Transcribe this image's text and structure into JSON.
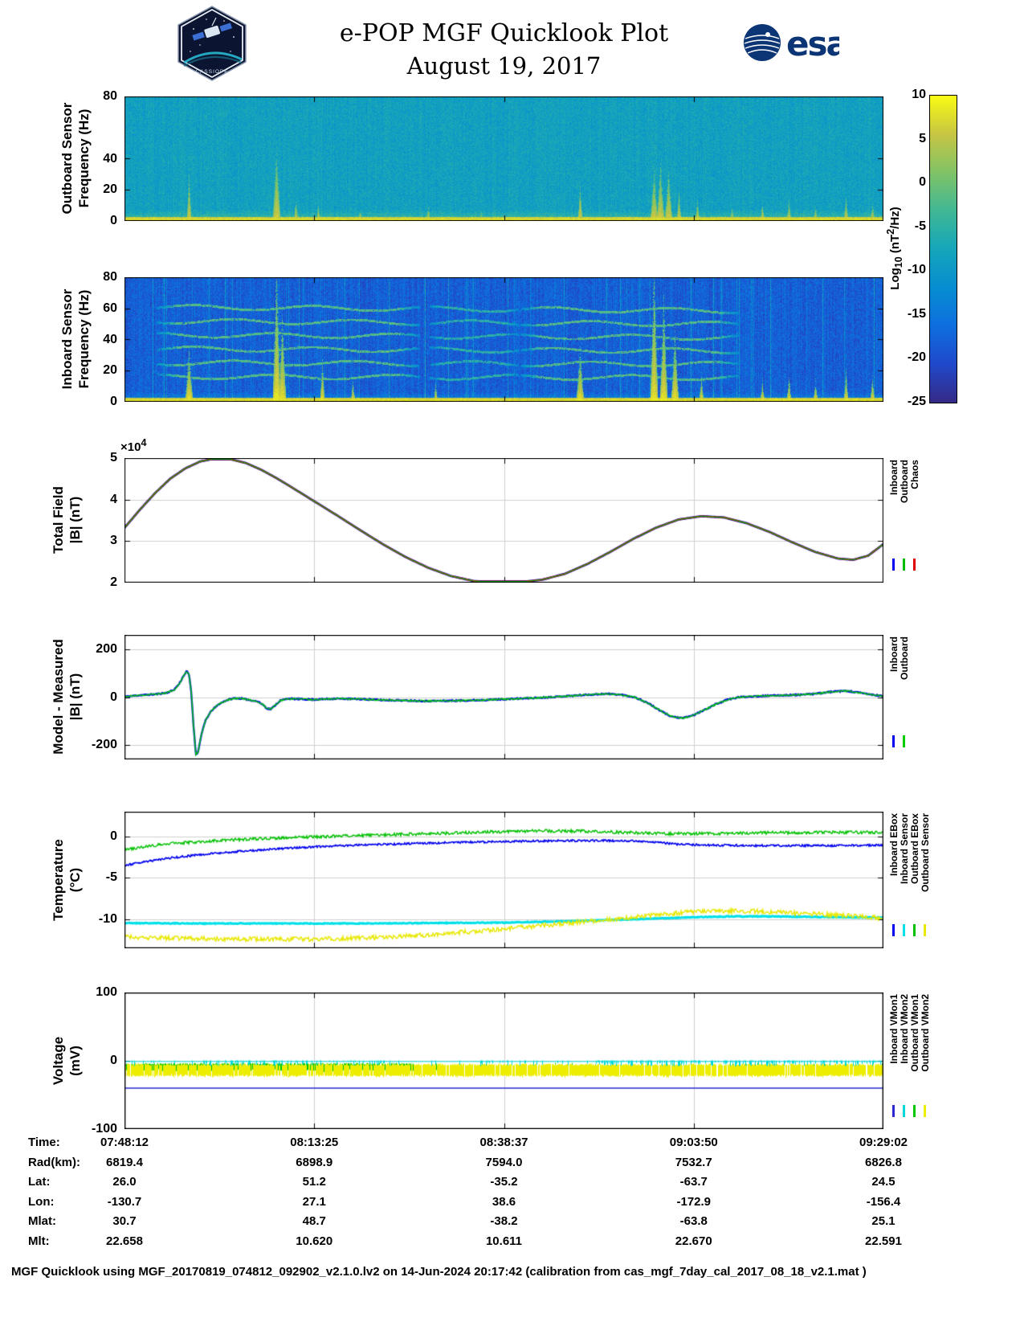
{
  "header": {
    "title_line1": "e-POP MGF Quicklook Plot",
    "title_line2": "August 19, 2017",
    "cassiope_logo_text": "CASSIOPE",
    "esa_logo_text": "esa"
  },
  "colorbar": {
    "label_pre": "Log",
    "label_sub": "10",
    "label_mid": " (nT",
    "label_sup": "2",
    "label_post": "/Hz)",
    "ticks": [
      10,
      5,
      0,
      -5,
      -10,
      -15,
      -20,
      -25
    ],
    "range": [
      -25,
      10
    ]
  },
  "chart_data": [
    {
      "id": "outboard_spectrogram",
      "type": "heatmap",
      "ylabel_line1": "Outboard Sensor",
      "ylabel_line2": "Frequency (Hz)",
      "ylim": [
        0,
        80
      ],
      "yticks": [
        0,
        20,
        40,
        80
      ],
      "x_time_range": [
        "07:48:12",
        "09:29:02"
      ],
      "value_range": [
        -25,
        10
      ],
      "background_level": -8.5,
      "bg_noise": 2.6,
      "col_mod": 0.8,
      "streak_prob": 0,
      "low_f": 7,
      "low_boost": 7,
      "burst_peak": 5,
      "bursts": [
        {
          "t": 0.085,
          "fmax": 28
        },
        {
          "t": 0.2,
          "fmax": 42
        },
        {
          "t": 0.225,
          "fmax": 12
        },
        {
          "t": 0.255,
          "fmax": 10
        },
        {
          "t": 0.31,
          "fmax": 6
        },
        {
          "t": 0.4,
          "fmax": 8
        },
        {
          "t": 0.47,
          "fmax": 5
        },
        {
          "t": 0.6,
          "fmax": 22
        },
        {
          "t": 0.697,
          "fmax": 30
        },
        {
          "t": 0.706,
          "fmax": 35
        },
        {
          "t": 0.716,
          "fmax": 30
        },
        {
          "t": 0.73,
          "fmax": 18
        },
        {
          "t": 0.755,
          "fmax": 12
        },
        {
          "t": 0.8,
          "fmax": 7
        },
        {
          "t": 0.84,
          "fmax": 10
        },
        {
          "t": 0.875,
          "fmax": 12
        },
        {
          "t": 0.91,
          "fmax": 8
        },
        {
          "t": 0.95,
          "fmax": 14
        },
        {
          "t": 0.985,
          "fmax": 10
        }
      ]
    },
    {
      "id": "inboard_spectrogram",
      "type": "heatmap",
      "ylabel_line1": "Inboard Sensor",
      "ylabel_line2": "Frequency (Hz)",
      "ylim": [
        0,
        80
      ],
      "yticks": [
        0,
        20,
        40,
        60,
        80
      ],
      "x_time_range": [
        "07:48:12",
        "09:29:02"
      ],
      "value_range": [
        -25,
        10
      ],
      "background_level": -18,
      "bg_noise": 3.2,
      "col_mod": 1.6,
      "streak_prob": 0.045,
      "low_f": 6,
      "low_boost": 8,
      "burst_peak": 7,
      "harmonics": [
        16,
        25,
        34,
        43,
        52,
        61
      ],
      "bursts": [
        {
          "t": 0.085,
          "fmax": 30
        },
        {
          "t": 0.2,
          "fmax": 78
        },
        {
          "t": 0.207,
          "fmax": 50
        },
        {
          "t": 0.26,
          "fmax": 24
        },
        {
          "t": 0.3,
          "fmax": 12
        },
        {
          "t": 0.41,
          "fmax": 10
        },
        {
          "t": 0.6,
          "fmax": 30
        },
        {
          "t": 0.697,
          "fmax": 78
        },
        {
          "t": 0.71,
          "fmax": 58
        },
        {
          "t": 0.725,
          "fmax": 40
        },
        {
          "t": 0.76,
          "fmax": 15
        },
        {
          "t": 0.84,
          "fmax": 12
        },
        {
          "t": 0.875,
          "fmax": 15
        },
        {
          "t": 0.91,
          "fmax": 12
        },
        {
          "t": 0.95,
          "fmax": 18
        },
        {
          "t": 0.985,
          "fmax": 14
        }
      ]
    },
    {
      "id": "total_field",
      "type": "line",
      "ylabel_line1": "Total Field",
      "ylabel_line2": "|B| (nT)",
      "y_multiplier_base": "×10",
      "y_multiplier_exp": "4",
      "ylim": [
        2,
        5
      ],
      "yticks": [
        2,
        3,
        4,
        5
      ],
      "x_time_range": [
        "07:48:12",
        "09:29:02"
      ],
      "x": [
        0,
        0.02,
        0.04,
        0.06,
        0.08,
        0.1,
        0.12,
        0.14,
        0.16,
        0.18,
        0.2,
        0.22,
        0.25,
        0.28,
        0.31,
        0.34,
        0.37,
        0.4,
        0.43,
        0.46,
        0.49,
        0.52,
        0.55,
        0.58,
        0.61,
        0.64,
        0.67,
        0.7,
        0.73,
        0.76,
        0.79,
        0.82,
        0.85,
        0.88,
        0.91,
        0.94,
        0.96,
        0.98,
        1.0
      ],
      "y": [
        3.32,
        3.75,
        4.15,
        4.5,
        4.75,
        4.92,
        4.99,
        4.97,
        4.88,
        4.72,
        4.52,
        4.3,
        3.96,
        3.62,
        3.27,
        2.93,
        2.62,
        2.36,
        2.16,
        2.04,
        2.0,
        2.01,
        2.07,
        2.21,
        2.45,
        2.74,
        3.05,
        3.32,
        3.52,
        3.6,
        3.57,
        3.43,
        3.22,
        2.97,
        2.74,
        2.58,
        2.55,
        2.65,
        2.93
      ],
      "series": [
        {
          "name": "Inboard",
          "color": "#0000ee",
          "width": 2.8
        },
        {
          "name": "Chaos",
          "color": "#e00000",
          "width": 2.0
        },
        {
          "name": "Outboard",
          "color": "#00bb00",
          "width": 1.1
        }
      ],
      "legend": [
        {
          "label": "Inboard",
          "color": "#0000ee"
        },
        {
          "label": "Outboard",
          "color": "#00bb00"
        },
        {
          "label": "Chaos",
          "color": "#e00000"
        }
      ]
    },
    {
      "id": "model_minus_measured",
      "type": "line",
      "ylabel_line1": "Model - Measured",
      "ylabel_line2": "|B| (nT)",
      "ylim": [
        -260,
        260
      ],
      "yticks": [
        -200,
        0,
        200
      ],
      "x_time_range": [
        "07:48:12",
        "09:29:02"
      ],
      "x": [
        0,
        0.02,
        0.04,
        0.055,
        0.065,
        0.072,
        0.078,
        0.082,
        0.085,
        0.088,
        0.091,
        0.094,
        0.097,
        0.101,
        0.107,
        0.115,
        0.125,
        0.135,
        0.145,
        0.155,
        0.165,
        0.175,
        0.182,
        0.188,
        0.193,
        0.198,
        0.205,
        0.215,
        0.23,
        0.25,
        0.28,
        0.31,
        0.34,
        0.37,
        0.4,
        0.43,
        0.46,
        0.49,
        0.52,
        0.55,
        0.58,
        0.61,
        0.635,
        0.655,
        0.672,
        0.69,
        0.705,
        0.72,
        0.735,
        0.75,
        0.765,
        0.78,
        0.795,
        0.81,
        0.83,
        0.85,
        0.87,
        0.89,
        0.91,
        0.93,
        0.95,
        0.97,
        0.985,
        1.0
      ],
      "y": [
        2,
        8,
        12,
        18,
        30,
        55,
        90,
        108,
        95,
        20,
        -120,
        -238,
        -230,
        -160,
        -95,
        -55,
        -28,
        -12,
        -4,
        -6,
        -12,
        -18,
        -30,
        -48,
        -50,
        -35,
        -15,
        -6,
        -8,
        -10,
        -6,
        -8,
        -12,
        -14,
        -16,
        -15,
        -13,
        -10,
        -6,
        -2,
        4,
        10,
        14,
        10,
        0,
        -25,
        -55,
        -80,
        -88,
        -75,
        -52,
        -28,
        -10,
        0,
        4,
        6,
        8,
        10,
        14,
        22,
        26,
        18,
        10,
        4
      ],
      "series": [
        {
          "name": "Inboard",
          "color": "#0000ee",
          "width": 2.4,
          "noise": 2.5
        },
        {
          "name": "Outboard",
          "color": "#00cc00",
          "width": 1.4,
          "noise": 3,
          "offset": -3
        }
      ],
      "legend": [
        {
          "label": "Inboard",
          "color": "#0000ee"
        },
        {
          "label": "Outboard",
          "color": "#00cc00"
        }
      ]
    },
    {
      "id": "temperature",
      "type": "line",
      "ylabel_line1": "Temperature",
      "ylabel_line2": "(°C)",
      "ylim": [
        -13.5,
        3
      ],
      "yticks": [
        0,
        -5,
        -10
      ],
      "x_time_range": [
        "07:48:12",
        "09:29:02"
      ],
      "series": [
        {
          "name": "Inboard Sensor",
          "color": "#00e0e8",
          "width": 3,
          "noise": 0.05,
          "x": [
            0,
            0.1,
            0.2,
            0.3,
            0.4,
            0.5,
            0.55,
            0.6,
            0.65,
            0.7,
            0.75,
            0.8,
            0.85,
            0.9,
            0.95,
            1.0
          ],
          "y": [
            -10.45,
            -10.5,
            -10.5,
            -10.5,
            -10.45,
            -10.4,
            -10.3,
            -10.2,
            -10.05,
            -9.9,
            -9.75,
            -9.65,
            -9.65,
            -9.7,
            -9.75,
            -9.8
          ]
        },
        {
          "name": "Inboard EBox",
          "color": "#0000ee",
          "width": 1.6,
          "noise": 0.12,
          "x": [
            0,
            0.03,
            0.06,
            0.1,
            0.15,
            0.2,
            0.25,
            0.3,
            0.36,
            0.42,
            0.5,
            0.58,
            0.64,
            0.68,
            0.7,
            0.73,
            0.78,
            0.85,
            0.92,
            1.0
          ],
          "y": [
            -3.5,
            -3.0,
            -2.6,
            -2.2,
            -1.8,
            -1.5,
            -1.25,
            -1.05,
            -0.9,
            -0.75,
            -0.6,
            -0.5,
            -0.5,
            -0.55,
            -0.7,
            -0.95,
            -1.05,
            -1.1,
            -1.1,
            -1.05
          ]
        },
        {
          "name": "Outboard EBox",
          "color": "#00c000",
          "width": 1.4,
          "noise": 0.18,
          "x": [
            0,
            0.03,
            0.07,
            0.12,
            0.18,
            0.25,
            0.32,
            0.4,
            0.48,
            0.55,
            0.6,
            0.66,
            0.72,
            0.78,
            0.85,
            0.92,
            1.0
          ],
          "y": [
            -1.6,
            -1.15,
            -0.8,
            -0.5,
            -0.25,
            -0.05,
            0.15,
            0.35,
            0.55,
            0.68,
            0.65,
            0.5,
            0.35,
            0.35,
            0.45,
            0.5,
            0.5
          ]
        },
        {
          "name": "Outboard Sensor",
          "color": "#e8e800",
          "width": 1.4,
          "noise": 0.28,
          "x": [
            0,
            0.05,
            0.12,
            0.2,
            0.28,
            0.34,
            0.4,
            0.46,
            0.52,
            0.58,
            0.64,
            0.7,
            0.74,
            0.78,
            0.82,
            0.87,
            0.92,
            0.96,
            1.0
          ],
          "y": [
            -12.1,
            -12.25,
            -12.35,
            -12.4,
            -12.35,
            -12.15,
            -11.85,
            -11.45,
            -11.0,
            -10.5,
            -10.0,
            -9.5,
            -9.15,
            -8.95,
            -9.0,
            -9.2,
            -9.4,
            -9.6,
            -9.85
          ]
        }
      ],
      "legend": [
        {
          "label": "Inboard EBox",
          "color": "#0000ee"
        },
        {
          "label": "Inboard Sensor",
          "color": "#00e0e8"
        },
        {
          "label": "Outboard EBox",
          "color": "#00c000"
        },
        {
          "label": "Outboard Sensor",
          "color": "#e8e800"
        }
      ]
    },
    {
      "id": "voltage",
      "type": "line",
      "ylabel_line1": "Voltage",
      "ylabel_line2": "(mV)",
      "ylim": [
        -100,
        100
      ],
      "yticks": [
        -100,
        0,
        100
      ],
      "x_time_range": [
        "07:48:12",
        "09:29:02"
      ],
      "series": [
        {
          "name": "Outboard VMon1",
          "color": "#00c800",
          "style": "noise_band",
          "band": [
            -3,
            -14
          ],
          "t_dense": [
            0,
            0.38
          ]
        },
        {
          "name": "Outboard VMon2",
          "color": "#eded00",
          "style": "noise_band",
          "band": [
            -4,
            -22
          ],
          "t_dense": [
            0,
            1
          ]
        },
        {
          "name": "Inboard VMon2",
          "color": "#00d8d8",
          "style": "spikes",
          "base_level": -1
        },
        {
          "name": "Inboard VMon1",
          "color": "#2a2ad0",
          "style": "flat",
          "level": -40
        }
      ],
      "legend": [
        {
          "label": "Inboard VMon1",
          "color": "#2a2ad0"
        },
        {
          "label": "Inboard VMon2",
          "color": "#00d8d8"
        },
        {
          "label": "Outboard VMon1",
          "color": "#00c800"
        },
        {
          "label": "Outboard VMon2",
          "color": "#eded00"
        }
      ]
    }
  ],
  "table": {
    "rows": [
      {
        "label": "Time:",
        "values": [
          "07:48:12",
          "08:13:25",
          "08:38:37",
          "09:03:50",
          "09:29:02"
        ]
      },
      {
        "label": "Rad(km):",
        "values": [
          "6819.4",
          "6898.9",
          "7594.0",
          "7532.7",
          "6826.8"
        ]
      },
      {
        "label": "Lat:",
        "values": [
          "26.0",
          "51.2",
          "-35.2",
          "-63.7",
          "24.5"
        ]
      },
      {
        "label": "Lon:",
        "values": [
          "-130.7",
          "27.1",
          "38.6",
          "-172.9",
          "-156.4"
        ]
      },
      {
        "label": "Mlat:",
        "values": [
          "30.7",
          "48.7",
          "-38.2",
          "-63.8",
          "25.1"
        ]
      },
      {
        "label": "Mlt:",
        "values": [
          "22.658",
          "10.620",
          "10.611",
          "22.670",
          "22.591"
        ]
      }
    ]
  },
  "footer": "MGF Quicklook using MGF_20170819_074812_092902_v2.1.0.lv2 on 14-Jun-2024 20:17:42 (calibration from cas_mgf_7day_cal_2017_08_18_v2.1.mat )"
}
